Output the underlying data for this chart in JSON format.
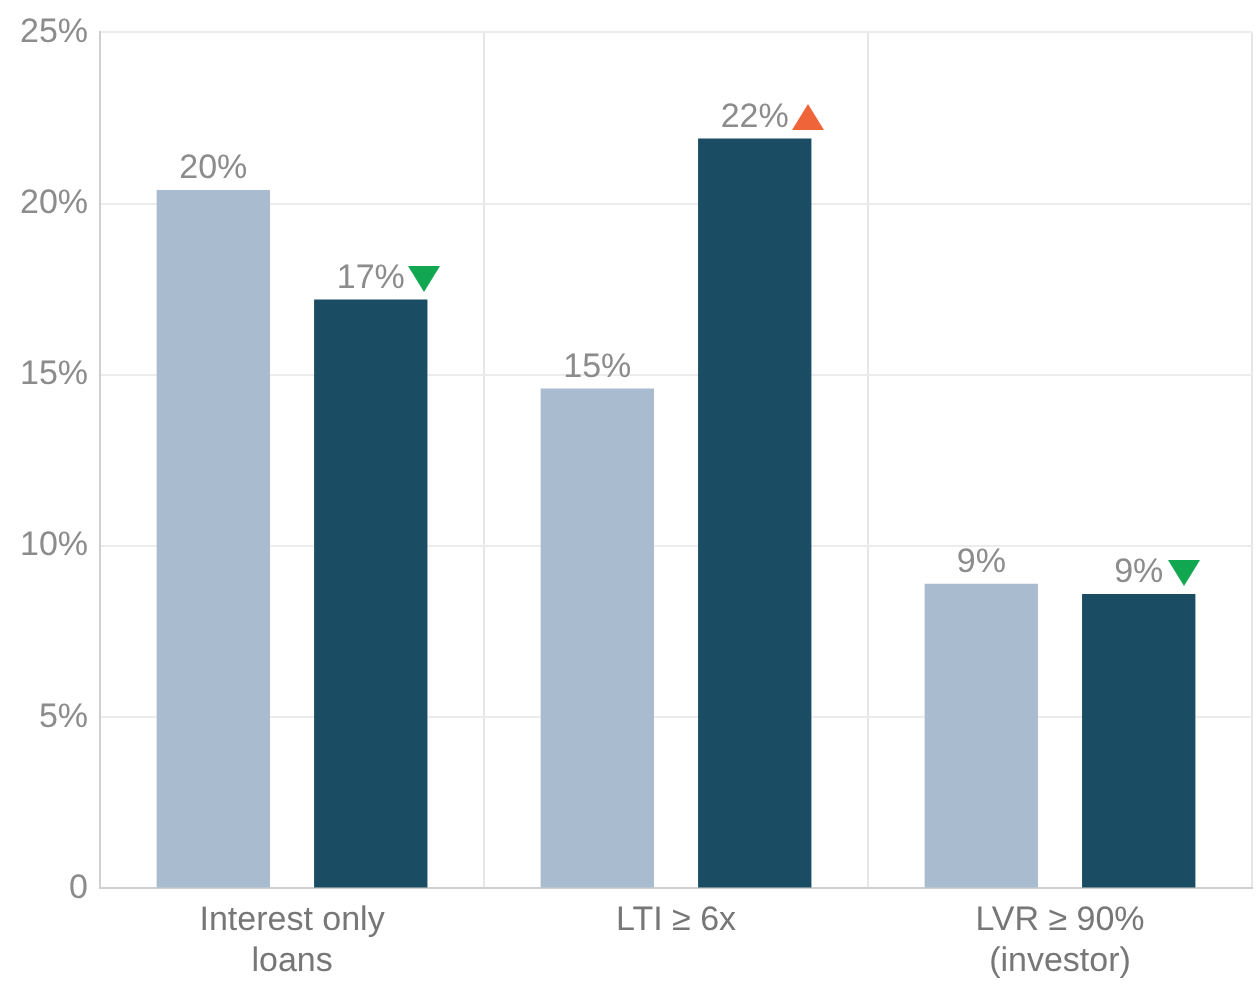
{
  "chart_data": {
    "type": "bar",
    "categories": [
      "Interest only loans",
      "LTI ≥ 6x",
      "LVR ≥ 90% (investor)"
    ],
    "series": [
      {
        "color": "#a9bccf",
        "values": [
          20.4,
          14.6,
          8.9
        ],
        "value_labels": [
          "20%",
          "15%",
          "9%"
        ]
      },
      {
        "color": "#1a4d63",
        "values": [
          17.2,
          21.9,
          8.6
        ],
        "value_labels": [
          "17%",
          "22%",
          "9%"
        ]
      }
    ],
    "ylim": [
      0,
      25
    ],
    "yticks": [
      {
        "value": 0,
        "label": "0"
      },
      {
        "value": 5,
        "label": "5%"
      },
      {
        "value": 10,
        "label": "10%"
      },
      {
        "value": 15,
        "label": "15%"
      },
      {
        "value": 20,
        "label": "20%"
      },
      {
        "value": 25,
        "label": "25%"
      }
    ],
    "grid": true,
    "legend": false
  }
}
